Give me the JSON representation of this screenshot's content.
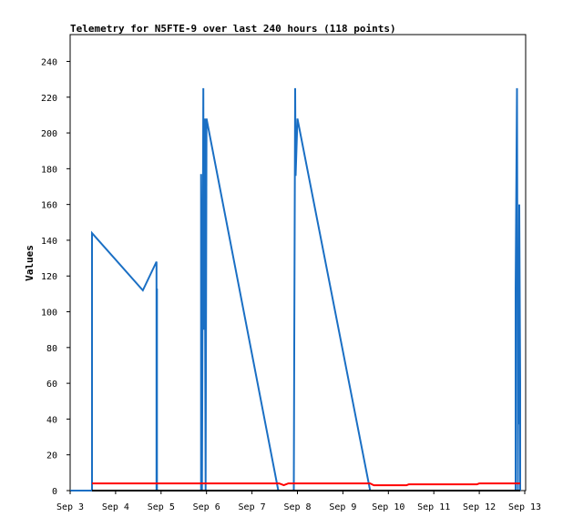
{
  "chart_data": {
    "type": "line",
    "title": "Telemetry for N5FTE-9 over last 240 hours (118 points)",
    "xlabel": "",
    "ylabel": "Values",
    "grid": false,
    "legend": "none",
    "xlim": [
      3.0,
      13.02
    ],
    "ylim": [
      0,
      255
    ],
    "x_ticks": [
      {
        "v": 3,
        "label": "Sep 3"
      },
      {
        "v": 4,
        "label": "Sep 4"
      },
      {
        "v": 5,
        "label": "Sep 5"
      },
      {
        "v": 6,
        "label": "Sep 6"
      },
      {
        "v": 7,
        "label": "Sep 7"
      },
      {
        "v": 8,
        "label": "Sep 8"
      },
      {
        "v": 9,
        "label": "Sep 9"
      },
      {
        "v": 10,
        "label": "Sep 10"
      },
      {
        "v": 11,
        "label": "Sep 11"
      },
      {
        "v": 12,
        "label": "Sep 12"
      },
      {
        "v": 13,
        "label": "Sep 13"
      }
    ],
    "y_ticks": [
      {
        "v": 0,
        "label": "0"
      },
      {
        "v": 20,
        "label": "20"
      },
      {
        "v": 40,
        "label": "40"
      },
      {
        "v": 60,
        "label": "60"
      },
      {
        "v": 80,
        "label": "80"
      },
      {
        "v": 100,
        "label": "100"
      },
      {
        "v": 120,
        "label": "120"
      },
      {
        "v": 140,
        "label": "140"
      },
      {
        "v": 160,
        "label": "160"
      },
      {
        "v": 180,
        "label": "180"
      },
      {
        "v": 200,
        "label": "200"
      },
      {
        "v": 220,
        "label": "220"
      },
      {
        "v": 240,
        "label": "240"
      }
    ],
    "series": [
      {
        "color": "#1a6fc4",
        "points": [
          [
            3.0,
            0
          ],
          [
            3.48,
            0
          ],
          [
            3.48,
            144
          ],
          [
            4.6,
            112
          ],
          [
            4.9,
            128
          ],
          [
            4.9,
            0
          ],
          [
            4.91,
            113
          ],
          [
            4.91,
            0
          ],
          [
            5.88,
            0
          ],
          [
            5.88,
            177
          ],
          [
            5.9,
            0
          ],
          [
            5.93,
            225
          ],
          [
            5.94,
            90
          ],
          [
            5.96,
            208
          ],
          [
            5.97,
            90
          ],
          [
            5.98,
            0
          ],
          [
            6.0,
            208
          ],
          [
            7.58,
            0
          ],
          [
            7.92,
            0
          ],
          [
            7.93,
            80
          ],
          [
            7.95,
            225
          ],
          [
            7.96,
            176
          ],
          [
            7.98,
            192
          ],
          [
            8.0,
            208
          ],
          [
            9.6,
            0
          ],
          [
            12.8,
            0
          ],
          [
            12.8,
            113
          ],
          [
            12.83,
            225
          ],
          [
            12.85,
            0
          ],
          [
            12.86,
            85
          ],
          [
            12.87,
            37
          ],
          [
            12.88,
            160
          ],
          [
            12.9,
            60
          ],
          [
            12.9,
            0
          ]
        ]
      },
      {
        "color": "#ff0000",
        "points": [
          [
            3.48,
            4
          ],
          [
            7.6,
            4
          ],
          [
            7.7,
            3
          ],
          [
            7.8,
            4
          ],
          [
            7.95,
            4
          ],
          [
            9.6,
            4
          ],
          [
            9.68,
            3
          ],
          [
            10.4,
            3
          ],
          [
            10.45,
            3.5
          ],
          [
            11.95,
            3.5
          ],
          [
            12.0,
            4
          ],
          [
            12.9,
            4
          ]
        ]
      },
      {
        "color": "#000000",
        "points": [
          [
            3.48,
            0
          ],
          [
            12.9,
            0
          ]
        ]
      }
    ]
  }
}
